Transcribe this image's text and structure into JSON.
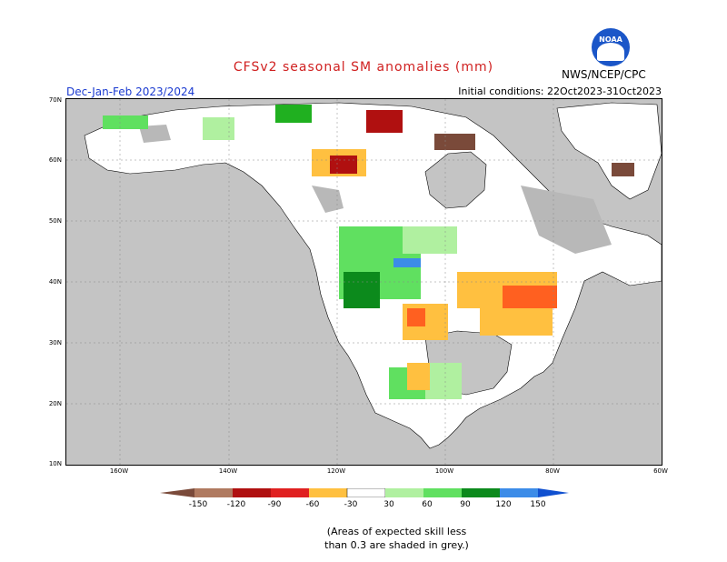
{
  "header": {
    "title": "CFSv2 seasonal SM anomalies (mm)",
    "period": "Dec-Jan-Feb 2023/2024",
    "initial_conditions": "Initial conditions: 22Oct2023-31Oct2023",
    "agency": "NWS/NCEP/CPC",
    "logo_text": "NOAA"
  },
  "map": {
    "lat_labels": [
      "70N",
      "60N",
      "50N",
      "40N",
      "30N",
      "20N",
      "10N"
    ],
    "lon_labels": [
      "160W",
      "140W",
      "120W",
      "100W",
      "80W",
      "60W"
    ],
    "colors": {
      "ocean": "#c4c4c4",
      "land": "#ffffff",
      "grey_mask": "#b8b8b8"
    }
  },
  "legend": {
    "labels": [
      "-150",
      "-120",
      "-90",
      "-60",
      "-30",
      "30",
      "60",
      "90",
      "120",
      "150"
    ],
    "colors": [
      "#7a4a3a",
      "#b07a60",
      "#b01010",
      "#e02020",
      "#ff6020",
      "#ffc040",
      "#ffffff",
      "#b0f0a0",
      "#60e060",
      "#20b020",
      "#0c8a1c",
      "#3c8ce8",
      "#1050d0"
    ]
  },
  "footer": {
    "note_line1": "(Areas of expected skill less",
    "note_line2": "than 0.3 are shaded in grey.)"
  }
}
